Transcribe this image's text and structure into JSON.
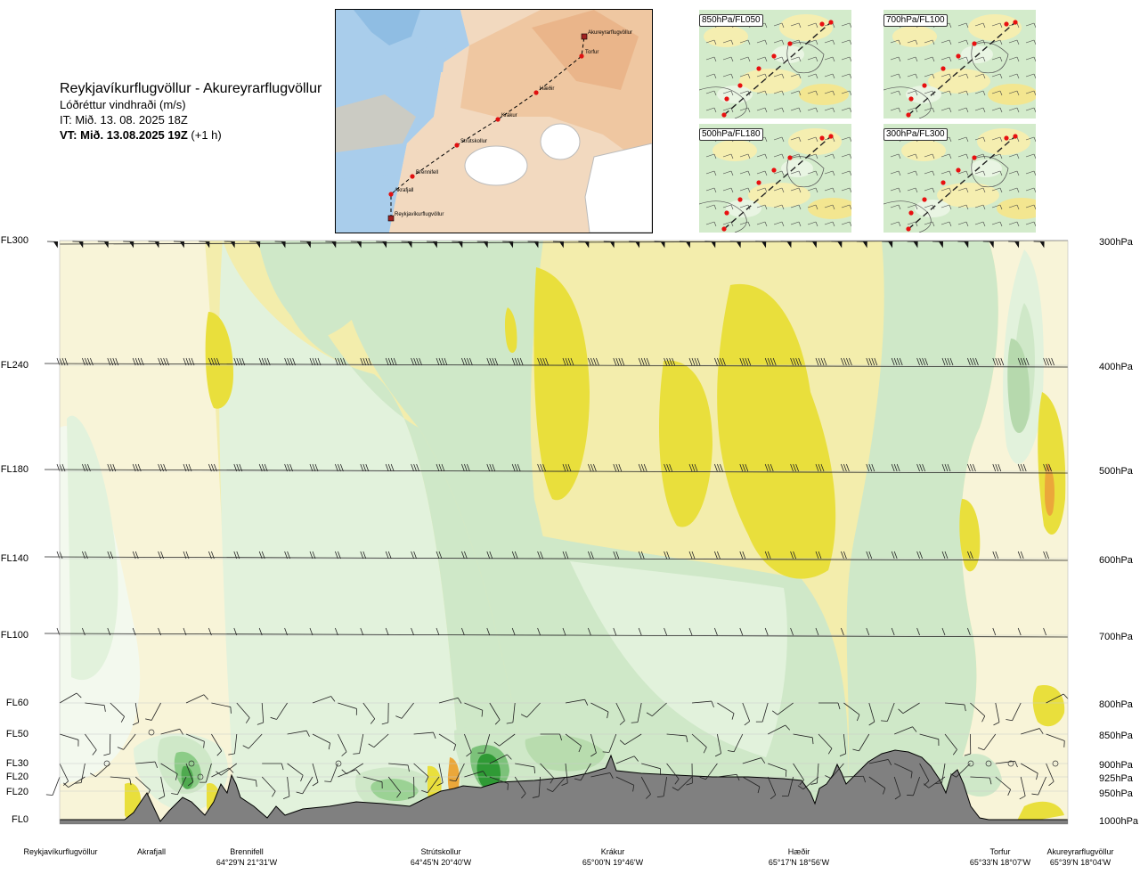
{
  "header": {
    "route": "Reykjavíkurflugvöllur - Akureyrarflugvöllur",
    "variable": "Lóðréttur vindhraði (m/s)",
    "issue_time": "IT: Mið. 13. 08. 2025 18Z",
    "valid_prefix": "VT: Mið. 13.08.2025 19Z",
    "valid_suffix": " (+1 h)"
  },
  "map": {
    "points": [
      "Akureyrarflugvöllur",
      "Torfur",
      "Hæðir",
      "Krákur",
      "Strútskollur",
      "Brennifell",
      "Akrafjall",
      "Reykjavíkurflugvöllur"
    ]
  },
  "thumbnails": [
    {
      "label": "850hPa/FL050"
    },
    {
      "label": "700hPa/FL100"
    },
    {
      "label": "500hPa/FL180"
    },
    {
      "label": "300hPa/FL300"
    }
  ],
  "chart_data": {
    "type": "heatmap",
    "title": "Lóðréttur vindhraði (m/s)",
    "y_left_levels": [
      "FL300",
      "FL240",
      "FL180",
      "FL140",
      "FL100",
      "FL60",
      "FL50",
      "FL30",
      "FL20",
      "FL20",
      "FL0"
    ],
    "y_right_levels": [
      "300hPa",
      "400hPa",
      "500hPa",
      "600hPa",
      "700hPa",
      "800hPa",
      "850hPa",
      "900hPa",
      "925hPa",
      "950hPa",
      "1000hPa"
    ],
    "stations": [
      {
        "name": "Reykjavíkurflugvöllur",
        "coord": ""
      },
      {
        "name": "Akrafjall",
        "coord": ""
      },
      {
        "name": "Brennifell",
        "coord": "64°29'N 21°31'W"
      },
      {
        "name": "Strútskollur",
        "coord": "64°45'N 20°40'W"
      },
      {
        "name": "Krákur",
        "coord": "65°00'N 19°46'W"
      },
      {
        "name": "Hæðir",
        "coord": "65°17'N 18°56'W"
      },
      {
        "name": "Torfur",
        "coord": "65°33'N 18°07'W"
      },
      {
        "name": "Akureyrarflugvöllur",
        "coord": "65°39'N 18°04'W"
      }
    ],
    "color_scale": [
      "#cfe8c8",
      "#e2f2dc",
      "#f3f9ee",
      "#ffffff",
      "#f8f4d8",
      "#f3edac",
      "#e9df3c",
      "#eba73a"
    ],
    "terrain_color": "#808080"
  }
}
